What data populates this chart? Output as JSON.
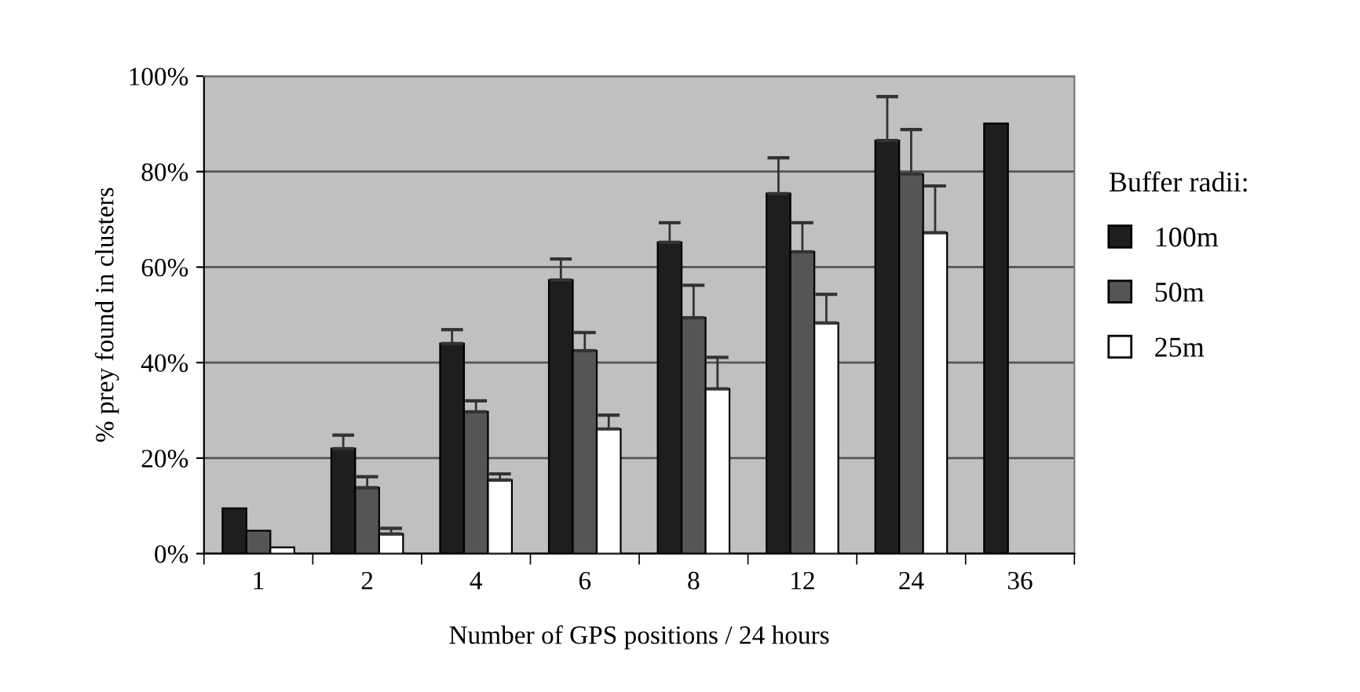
{
  "chart_data": {
    "type": "bar",
    "xlabel": "Number of GPS positions / 24 hours",
    "ylabel": "% prey found in clusters",
    "legend_title": "Buffer radii:",
    "legend": "right",
    "grid": "y",
    "categories": [
      "1",
      "2",
      "4",
      "6",
      "8",
      "12",
      "24",
      "36"
    ],
    "series": [
      {
        "name": "100m",
        "color": "#1e1e1e",
        "values": [
          9.5,
          22.0,
          44.0,
          57.3,
          65.2,
          75.4,
          86.5,
          90.1
        ],
        "errors": [
          null,
          [
            22.0,
            24.8
          ],
          [
            44.0,
            46.9
          ],
          [
            57.3,
            61.7
          ],
          [
            65.2,
            69.3
          ],
          [
            75.4,
            82.9
          ],
          [
            86.5,
            95.7
          ],
          null
        ]
      },
      {
        "name": "50m",
        "color": "#555555",
        "values": [
          4.8,
          13.8,
          29.7,
          42.5,
          49.4,
          63.2,
          79.5,
          null
        ],
        "errors": [
          null,
          [
            13.8,
            16.1
          ],
          [
            29.7,
            32.0
          ],
          [
            42.5,
            46.3
          ],
          [
            49.4,
            56.2
          ],
          [
            63.2,
            69.3
          ],
          [
            79.5,
            88.8
          ],
          null
        ]
      },
      {
        "name": "25m",
        "color": "#ffffff",
        "values": [
          1.3,
          4.1,
          15.4,
          26.1,
          34.5,
          48.3,
          67.2,
          null
        ],
        "errors": [
          null,
          [
            4.1,
            5.3
          ],
          [
            15.4,
            16.7
          ],
          [
            26.1,
            29.0
          ],
          [
            34.5,
            41.1
          ],
          [
            48.3,
            54.3
          ],
          [
            67.2,
            77.0
          ],
          null
        ]
      }
    ],
    "ylim": [
      0,
      100
    ],
    "yticks": [
      {
        "value": 0,
        "label": "0%"
      },
      {
        "value": 20,
        "label": "20%"
      },
      {
        "value": 40,
        "label": "40%"
      },
      {
        "value": 60,
        "label": "60%"
      },
      {
        "value": 80,
        "label": "80%"
      },
      {
        "value": 100,
        "label": "100%"
      }
    ]
  }
}
